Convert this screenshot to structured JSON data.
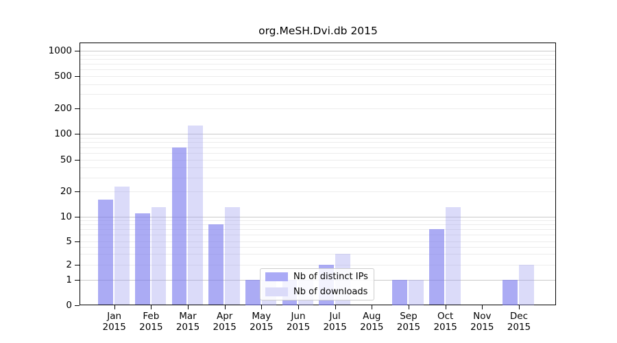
{
  "title": "org.MeSH.Dvi.db 2015",
  "chart_data": {
    "type": "bar",
    "title": "org.MeSH.Dvi.db 2015",
    "xlabel": "",
    "ylabel": "",
    "scale": "log-like (0,1,2,5,10,20,50,100,200,500,1000 ticks)",
    "grid": "horizontal major and minor gridlines",
    "legend_position": "inside plot, lower center",
    "ylim": [
      0,
      1000
    ],
    "yticks": [
      0,
      1,
      2,
      5,
      10,
      20,
      50,
      100,
      200,
      500,
      1000
    ],
    "categories": [
      "Jan 2015",
      "Feb 2015",
      "Mar 2015",
      "Apr 2015",
      "May 2015",
      "Jun 2015",
      "Jul 2015",
      "Aug 2015",
      "Sep 2015",
      "Oct 2015",
      "Nov 2015",
      "Dec 2015"
    ],
    "series": [
      {
        "name": "Nb of distinct IPs",
        "values": [
          16,
          11,
          70,
          8,
          1,
          1,
          2,
          0,
          1,
          7,
          0,
          1
        ],
        "fill": "rgba(119,119,238,0.62)",
        "swatch": "#aaaaf6"
      },
      {
        "name": "Nb of downloads",
        "values": [
          23,
          13,
          126,
          13,
          1,
          1,
          3,
          0,
          1,
          13,
          0,
          2
        ],
        "fill": "rgba(153,153,238,0.35)",
        "swatch": "#dbdbf9"
      }
    ]
  },
  "legend": {
    "items": [
      {
        "label": "Nb of distinct IPs"
      },
      {
        "label": "Nb of downloads"
      }
    ]
  },
  "colors": {
    "bar_distinct_ips": "#aaaaf6",
    "bar_downloads": "#dbdbf9",
    "major_grid": "#c9c9c9",
    "minor_grid": "#ececec",
    "spine": "#000000",
    "background": "#ffffff"
  }
}
